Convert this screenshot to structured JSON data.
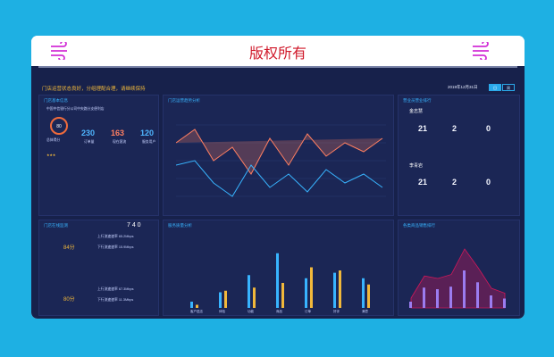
{
  "header": {
    "title": "版权所有"
  },
  "dashboard": {
    "notice": "门店运营状态良好，分组理配合理，请继续保持",
    "date": "2019年12月31日",
    "buttons": [
      "日",
      "周"
    ],
    "store_info": {
      "title": "门店基本信息",
      "subtitle": "中国中信银行分公司中央路分支便利店",
      "stats": [
        {
          "value": "230",
          "label": "订单量"
        },
        {
          "value": "163",
          "label": "现在客流"
        },
        {
          "value": "120",
          "label": "服务用户"
        }
      ],
      "gauge_label": "总体得分"
    },
    "trend": {
      "title": "门店运营趋势分析",
      "legend": [
        "客流量",
        "营业额",
        "回头客率",
        "满意度"
      ]
    },
    "ranking": {
      "title": "营业员营业排行",
      "people": [
        {
          "name": "金志慧",
          "rank": "1号",
          "labels": [
            "订单客流",
            "订单量",
            "消费总量"
          ],
          "values": [
            "21",
            "2",
            "0"
          ]
        },
        {
          "name": "李青岩",
          "rank": "2号",
          "labels": [
            "订单客流",
            "订单量",
            "消费总量"
          ],
          "values": [
            "21",
            "2",
            "0"
          ]
        }
      ]
    },
    "online": {
      "title": "门店在线监测",
      "count": "7 4 0",
      "devices": [
        {
          "label": "在线时长",
          "score": "84分",
          "up": "上行流速速率 65.2Mbps",
          "down": "下行流速速率 15.9Mbps"
        },
        {
          "label": "在线时长",
          "score": "80分",
          "up": "上行流速速率 67.3Mbps",
          "down": "下行流速速率 11.3Mbps"
        }
      ]
    },
    "bars": {
      "title": "服务质量分析",
      "legend": [
        "订单额",
        "营业额"
      ]
    },
    "sales": {
      "title": "各类商品销售排行"
    }
  },
  "chart_data": [
    {
      "type": "bar",
      "title": "服务质量分析",
      "categories": [
        "客户进店",
        "体验",
        "功能",
        "商品",
        "订单",
        "好评",
        "满意"
      ],
      "series": [
        {
          "name": "订单额",
          "values": [
            8,
            20,
            42,
            70,
            38,
            45,
            38
          ]
        },
        {
          "name": "营业额",
          "values": [
            4,
            22,
            26,
            32,
            52,
            48,
            30
          ]
        }
      ]
    },
    {
      "type": "area",
      "title": "各类商品销售排行",
      "categories": [
        "A",
        "B",
        "C",
        "D",
        "E",
        "F",
        "G",
        "H"
      ],
      "series": [
        {
          "name": "销售",
          "values": [
            20,
            65,
            60,
            68,
            120,
            82,
            40,
            30
          ]
        }
      ]
    }
  ],
  "colors": {
    "accent": "#38b4ff",
    "highlight": "#f1b83b",
    "danger": "#d0182a"
  }
}
